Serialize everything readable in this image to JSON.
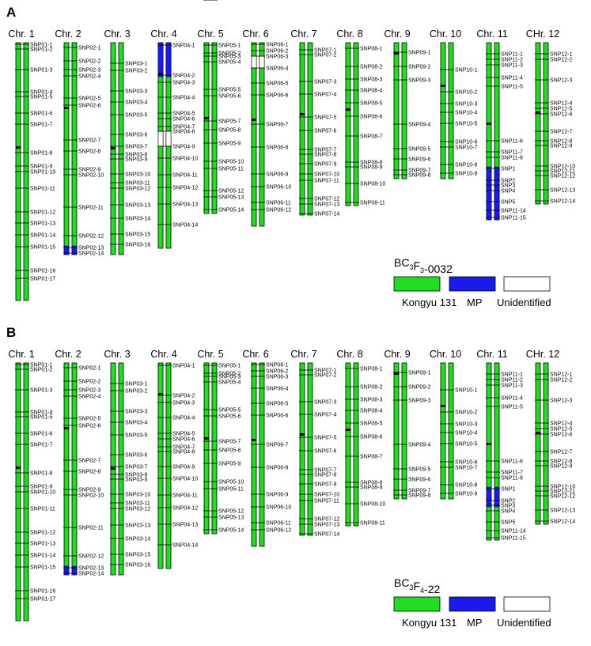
{
  "panels": [
    {
      "letter": "A",
      "legend_title": "BC3F3-0032",
      "legend_title_main": "BC",
      "legend_title_sub1": "3",
      "legend_title_mid": "F",
      "legend_title_sub2": "3",
      "legend_title_tail": "-0032"
    },
    {
      "letter": "B",
      "legend_title": "BC3F4-22",
      "legend_title_main": "BC",
      "legend_title_sub1": "3",
      "legend_title_mid": "F",
      "legend_title_sub2": "4",
      "legend_title_tail": "-22"
    }
  ],
  "legend": [
    {
      "label": "Kongyu 131",
      "color": "#22dd22"
    },
    {
      "label": "MP",
      "color": "#1a1aee"
    },
    {
      "label": "Unidentified",
      "color": "#ffffff"
    }
  ],
  "colors": {
    "kongyu": "#22dd22",
    "mp": "#1a1aee",
    "unidentified": "#ffffff",
    "centromere": "#000000"
  },
  "chromosomes": [
    {
      "label": "Chr. 1",
      "markers": [
        "SNP01-1",
        "SNP01-2",
        "SNP01-3",
        "SNP01-4",
        "SNP01-5",
        "SNP01-6",
        "SNP01-7",
        "SNP01-8",
        "SNP01-9",
        "SNP01-10",
        "SNP01-11",
        "SNP01-12",
        "SNP01-13",
        "SNP01-14",
        "SNP01-15",
        "SNP01-16",
        "SNP01-17"
      ]
    },
    {
      "label": "Chr. 2",
      "markers": [
        "SNP02-1",
        "SNP02-2",
        "SNP02-3",
        "SNP02-4",
        "SNP02-5",
        "SNP02-6",
        "SNP02-7",
        "SNP02-8",
        "SNP02-9",
        "SNP02-10",
        "SNP02-11",
        "SNP02-12",
        "SNP02-13",
        "SNP02-14"
      ]
    },
    {
      "label": "Chr. 3",
      "markers": [
        "SNP03-1",
        "SNP03-2",
        "SNP03-3",
        "SNP03-4",
        "SNP03-5",
        "SNP03-6",
        "SNP03-7",
        "SNP03-8",
        "SNP03-9",
        "SNP03-10",
        "SNP03-11",
        "SNP03-12",
        "SNP03-13",
        "SNP03-14",
        "SNP03-15",
        "SNP03-16"
      ]
    },
    {
      "label": "Chr. 4",
      "markers": [
        "SNP04-1",
        "SNP04-2",
        "SNP04-3",
        "SNP04-4",
        "SNP04-5",
        "SNP04-6",
        "SNP04-7",
        "SNP04-8",
        "SNP04-9",
        "SNP04-10",
        "SNP04-11",
        "SNP04-12",
        "SNP04-13",
        "SNP04-14"
      ]
    },
    {
      "label": "Chr. 5",
      "markers": [
        "SNP05-1",
        "SNP05-2",
        "SNP05-3",
        "SNP05-4",
        "SNP05-5",
        "SNP05-6",
        "SNP05-7",
        "SNP05-8",
        "SNP05-9",
        "SNP05-10",
        "SNP05-11",
        "SNP05-12",
        "SNP05-13",
        "SNP05-14",
        "SNP05-15"
      ]
    },
    {
      "label": "Chr. 6",
      "markers": [
        "SNP06-1",
        "SNP06-2",
        "SNP06-3",
        "SNP06-4",
        "SNP06-5",
        "SNP06-6",
        "SNP06-7",
        "SNP06-8",
        "SNP06-9",
        "SNP06-10",
        "SNP06-11",
        "SNP06-12"
      ]
    },
    {
      "label": "Chr. 7",
      "markers": [
        "SNP07-1",
        "SNP07-2",
        "SNP07-3",
        "SNP07-4",
        "SNP07-5",
        "SNP07-6",
        "SNP07-7",
        "SNP07-8",
        "SNP07-9",
        "SNP07-10",
        "SNP07-11",
        "SNP07-12",
        "SNP07-13",
        "SNP07-14"
      ]
    },
    {
      "label": "Chr. 8",
      "markers": [
        "SNP08-1",
        "SNP08-2",
        "SNP08-3",
        "SNP08-4",
        "SNP08-5",
        "SNP08-6",
        "SNP08-7",
        "SNP08-8",
        "SNP08-9",
        "SNP08-10",
        "SNP08-11"
      ]
    },
    {
      "label": "Chr. 9",
      "markers": [
        "SNP09-1",
        "SNP09-2",
        "SNP09-3",
        "SNP09-4",
        "SNP09-5",
        "SNP09-6",
        "SNP09-7",
        "SNP09-8"
      ]
    },
    {
      "label": "Chr. 10",
      "markers": [
        "SNP10-1",
        "SNP10-2",
        "SNP10-3",
        "SNP10-4",
        "SNP10-5",
        "SNP10-6",
        "SNP10-7",
        "SNP10-8",
        "SNP10-9"
      ]
    },
    {
      "label": "Chr. 11",
      "markers": [
        "SNP11-1",
        "SNP11-2",
        "SNP11-3",
        "SNP11-4",
        "SNP11-5",
        "SNP11-6",
        "SNP11-7",
        "SNP11-8",
        "SNP1",
        "SNP2",
        "SNP3",
        "SNP4",
        "SNP5",
        "SNP11-14",
        "SNP11-15"
      ]
    },
    {
      "label": "CHr. 12",
      "markers": [
        "SNP12-1",
        "SNP12-2",
        "SNP12-3",
        "SNP12-4",
        "SNP12-5",
        "SNP12-6",
        "SNP12-7",
        "SNP12-8",
        "SNP12-9",
        "SNP12-10",
        "SNP12-11",
        "SNP12-12",
        "SNP12-13",
        "SNP12-14"
      ]
    }
  ],
  "mp_segments": {
    "A": [
      {
        "chromosome": "Chr. 2",
        "from": "SNP02-13",
        "to": "SNP02-14"
      },
      {
        "chromosome": "Chr. 4",
        "from": "SNP04-1",
        "to": "SNP04-2"
      },
      {
        "chromosome": "Chr. 11",
        "from": "SNP1",
        "to": "SNP11-15"
      }
    ],
    "B": [
      {
        "chromosome": "Chr. 2",
        "from": "SNP02-13",
        "to": "SNP02-14"
      },
      {
        "chromosome": "Chr. 11",
        "from": "SNP1",
        "to": "SNP3"
      }
    ]
  },
  "unidentified_segments": {
    "A": [
      {
        "chromosome": "Chr. 4",
        "from": "SNP04-8",
        "to": "SNP04-9"
      },
      {
        "chromosome": "Chr. 6",
        "from": "SNP06-3",
        "to": "SNP06-4"
      }
    ],
    "B": []
  }
}
